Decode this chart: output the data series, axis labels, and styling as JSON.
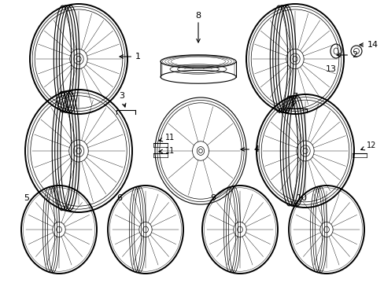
{
  "background_color": "#ffffff",
  "line_color": "#000000",
  "text_color": "#000000",
  "fig_width": 4.89,
  "fig_height": 3.6,
  "dpi": 100
}
